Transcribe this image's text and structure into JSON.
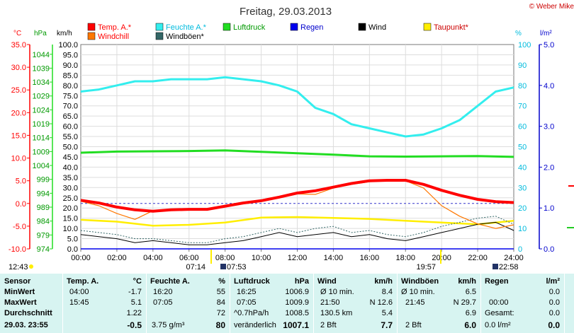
{
  "title": "Freitag, 29.03.2013",
  "copyright": "© Weber Mike",
  "legend": [
    {
      "label": "Temp. A.*",
      "color": "#ff0000",
      "text_color": "#ff0000"
    },
    {
      "label": "Feuchte A.*",
      "color": "#33eeee",
      "text_color": "#00bbdd"
    },
    {
      "label": "Luftdruck",
      "color": "#22dd22",
      "text_color": "#009900"
    },
    {
      "label": "Regen",
      "color": "#0000ee",
      "text_color": "#0000cc"
    },
    {
      "label": "Wind",
      "color": "#000000",
      "text_color": "#000000"
    },
    {
      "label": "Taupunkt*",
      "color": "#ffee00",
      "text_color": "#cc0000"
    },
    {
      "label": "Windchill",
      "color": "#ff7700",
      "text_color": "#ff0000"
    },
    {
      "label": "Windböen*",
      "color": "#336666",
      "text_color": "#000000"
    }
  ],
  "axis_units": {
    "temp": "°C",
    "pressure": "hPa",
    "wind": "km/h",
    "humidity": "%",
    "rain": "l/m²"
  },
  "colors": {
    "temp": "#ff0000",
    "humidity": "#33eeee",
    "pressure": "#22dd22",
    "wind": "#000000",
    "gust": "#336666",
    "dewpoint": "#ffee00",
    "windchill": "#ff7700",
    "rain": "#0000ee",
    "table_bg": "#d7f4f1"
  },
  "chart_data": {
    "type": "line",
    "title": "Freitag, 29.03.2013",
    "x_ticks": [
      "00:00",
      "02:00",
      "04:00",
      "06:00",
      "08:00",
      "10:00",
      "12:00",
      "14:00",
      "16:00",
      "18:00",
      "20:00",
      "22:00",
      "24:00"
    ],
    "x_range_hours": [
      0,
      24
    ],
    "axes": {
      "temp": {
        "label": "°C",
        "range": [
          -10,
          35
        ],
        "ticks": [
          "35.0",
          "30.0",
          "25.0",
          "20.0",
          "15.0",
          "10.0",
          "5.0",
          "0.0",
          "-5.0",
          "-10.0"
        ]
      },
      "pressure": {
        "label": "hPa",
        "range": [
          974,
          1047.5
        ],
        "ticks": [
          "1044",
          "1039",
          "1034",
          "1029",
          "1024",
          "1019",
          "1014",
          "1009",
          "1004",
          "999",
          "994",
          "989",
          "984",
          "979",
          "974"
        ]
      },
      "wind": {
        "label": "km/h",
        "range": [
          0,
          100
        ],
        "ticks": [
          "100.0",
          "95.0",
          "90.0",
          "85.0",
          "80.0",
          "75.0",
          "70.0",
          "65.0",
          "60.0",
          "55.0",
          "50.0",
          "45.0",
          "40.0",
          "35.0",
          "30.0",
          "25.0",
          "20.0",
          "15.0",
          "10.0",
          "5.0",
          "0.0"
        ]
      },
      "humidity": {
        "label": "%",
        "range": [
          0,
          100
        ],
        "ticks": [
          "100",
          "90",
          "80",
          "70",
          "60",
          "50",
          "40",
          "30",
          "20",
          "10",
          "0"
        ]
      },
      "rain": {
        "label": "l/m²",
        "range": [
          0,
          5
        ],
        "ticks": [
          "5.0",
          "4.0",
          "3.0",
          "2.0",
          "1.0",
          "0.0"
        ]
      }
    },
    "series": [
      {
        "name": "Temp. A.*",
        "axis": "temp",
        "x": [
          0,
          1,
          2,
          3,
          4,
          5,
          6,
          7,
          8,
          9,
          10,
          11,
          12,
          13,
          14,
          15,
          16,
          17,
          18,
          19,
          20,
          21,
          22,
          23,
          24
        ],
        "y": [
          0.7,
          0.1,
          -0.8,
          -1.4,
          -1.7,
          -1.4,
          -1.3,
          -1.3,
          -0.6,
          0.1,
          0.6,
          1.4,
          2.3,
          2.8,
          3.6,
          4.4,
          5.0,
          5.1,
          5.1,
          4.2,
          2.9,
          1.8,
          0.9,
          0.4,
          0.2
        ]
      },
      {
        "name": "Feuchte A.*",
        "axis": "humidity",
        "x": [
          0,
          1,
          2,
          3,
          4,
          5,
          6,
          7,
          8,
          9,
          10,
          11,
          12,
          13,
          14,
          15,
          16,
          17,
          18,
          19,
          20,
          21,
          22,
          23,
          24
        ],
        "y": [
          77,
          78,
          80,
          82,
          82,
          83,
          83,
          83,
          84,
          83,
          82,
          80,
          77,
          69,
          66,
          61,
          59,
          57,
          55,
          56,
          59,
          63,
          70,
          77,
          79
        ]
      },
      {
        "name": "Luftdruck",
        "axis": "pressure",
        "x": [
          0,
          2,
          4,
          6,
          8,
          10,
          12,
          14,
          16,
          18,
          20,
          22,
          24
        ],
        "y": [
          1008.6,
          1009.0,
          1009.1,
          1009.2,
          1009.4,
          1008.9,
          1008.4,
          1007.9,
          1007.3,
          1007.2,
          1007.3,
          1007.4,
          1007.1
        ]
      },
      {
        "name": "Taupunkt*",
        "axis": "temp",
        "x": [
          0,
          2,
          4,
          6,
          8,
          10,
          12,
          14,
          16,
          18,
          20,
          22,
          24
        ],
        "y": [
          -3.6,
          -4.0,
          -4.9,
          -4.7,
          -4.2,
          -3.1,
          -3.0,
          -3.2,
          -3.4,
          -3.8,
          -4.2,
          -4.6,
          -3.8
        ]
      },
      {
        "name": "Windchill",
        "axis": "temp",
        "x": [
          0,
          1,
          2,
          3,
          4,
          5,
          6,
          7,
          8,
          9,
          10,
          11,
          12,
          13,
          14,
          15,
          16,
          17,
          18,
          19,
          20,
          21,
          22,
          23,
          24
        ],
        "y": [
          0.5,
          -0.5,
          -2.2,
          -3.5,
          -1.6,
          -1.5,
          -1.4,
          -1.4,
          -0.8,
          0.0,
          0.5,
          1.2,
          2.1,
          2.0,
          3.4,
          4.2,
          4.8,
          5.0,
          5.0,
          3.4,
          -0.5,
          -2.8,
          -4.5,
          -5.5,
          -4.7
        ]
      },
      {
        "name": "Wind",
        "axis": "wind",
        "x": [
          0,
          1,
          2,
          3,
          4,
          5,
          6,
          7,
          8,
          9,
          10,
          11,
          12,
          13,
          14,
          15,
          16,
          17,
          18,
          19,
          20,
          21,
          22,
          23,
          24
        ],
        "y": [
          7,
          6,
          5,
          3,
          4,
          3,
          2,
          2,
          3,
          4,
          6,
          8,
          6,
          7,
          8,
          6,
          7,
          5,
          4,
          6,
          8,
          10,
          12,
          13,
          9
        ]
      },
      {
        "name": "Windböen*",
        "axis": "wind",
        "x": [
          0,
          1,
          2,
          3,
          4,
          5,
          6,
          7,
          8,
          9,
          10,
          11,
          12,
          13,
          14,
          15,
          16,
          17,
          18,
          19,
          20,
          21,
          22,
          23,
          24
        ],
        "y": [
          9,
          8,
          7,
          5,
          5,
          4,
          3,
          3,
          5,
          6,
          8,
          10,
          8,
          10,
          11,
          8,
          9,
          7,
          6,
          8,
          11,
          13,
          15,
          16,
          12
        ]
      },
      {
        "name": "Regen",
        "axis": "rain",
        "x": [
          0,
          24
        ],
        "y": [
          0,
          0
        ]
      }
    ],
    "reference_line": {
      "axis": "temp",
      "value": 0
    },
    "bottom_markers": [
      "12:43",
      "07:14",
      "07:53",
      "19:57",
      "22:58"
    ]
  },
  "table": {
    "columns": [
      {
        "header": "Sensor",
        "unit": "",
        "rows": [
          "MinWert",
          "MaxWert",
          "Durchschnitt"
        ],
        "total": "29.03.  23:55"
      },
      {
        "header": "Temp. A.",
        "unit": "°C",
        "rows": [
          [
            "04:00",
            "-1.7"
          ],
          [
            "15:45",
            "5.1"
          ],
          [
            "",
            "1.22"
          ]
        ],
        "total": [
          "",
          "-0.5"
        ]
      },
      {
        "header": "Feuchte A.",
        "unit": "%",
        "rows": [
          [
            "16:20",
            "55"
          ],
          [
            "07:05",
            "84"
          ],
          [
            "",
            "72"
          ]
        ],
        "total": [
          "3.75 g/m³",
          "80"
        ]
      },
      {
        "header": "Luftdruck",
        "unit": "hPa",
        "rows": [
          [
            "16:25",
            "1006.9"
          ],
          [
            "07:05",
            "1009.9"
          ],
          [
            "^0.7hPa/h",
            "1008.5"
          ]
        ],
        "total": [
          "veränderlich",
          "1007.1"
        ]
      },
      {
        "header": "Wind",
        "unit": "km/h",
        "rows": [
          [
            "Ø 10 min.",
            "",
            "8.4"
          ],
          [
            "21:50",
            "N 12.6",
            ""
          ],
          [
            "130.5 km",
            "",
            "5.4"
          ]
        ],
        "total": [
          "2 Bft",
          "",
          "7.7"
        ]
      },
      {
        "header": "Windböen",
        "unit": "km/h",
        "rows": [
          [
            "Ø 10 min.",
            "",
            "6.5"
          ],
          [
            "21:45",
            "N 29.7",
            ""
          ],
          [
            "",
            "",
            "6.9"
          ]
        ],
        "total": [
          "2 Bft",
          "",
          "6.0"
        ]
      },
      {
        "header": "Regen",
        "unit": "l/m²",
        "rows": [
          [
            "",
            "0.0"
          ],
          [
            "00:00",
            "0.0"
          ],
          [
            "Gesamt:",
            "0.0"
          ]
        ],
        "total": [
          "0.0 l/m²",
          "0.0"
        ]
      }
    ]
  }
}
